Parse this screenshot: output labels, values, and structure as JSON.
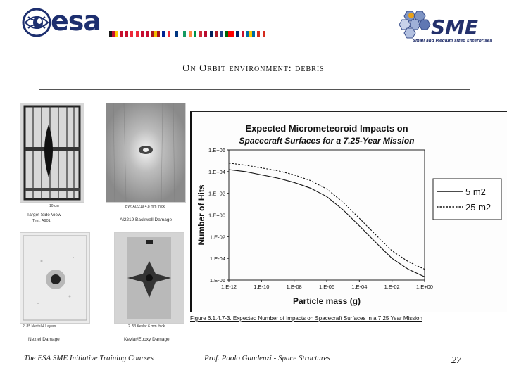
{
  "header": {
    "esa_logo_text": "esa",
    "sme_logo_text": "SME",
    "sme_tagline": "Small and Medium sized Enterprises",
    "flag_colors": [
      [
        "#1a1a1a",
        "#c8102e",
        "#ffcc00"
      ],
      [
        "#c8102e",
        "#ffffff",
        "#c8102e"
      ],
      [
        "#ed2939",
        "#ffffff",
        "#ed2939"
      ],
      [
        "#c60c30",
        "#ffffff",
        "#c60c30"
      ],
      [
        "#aa151b",
        "#f1bf00",
        "#aa151b"
      ],
      [
        "#002395",
        "#ffffff",
        "#ed2939"
      ],
      [
        "#ffffff",
        "#003580",
        "#ffffff"
      ],
      [
        "#169b62",
        "#ffffff",
        "#ff883e"
      ],
      [
        "#009246",
        "#ffffff",
        "#ce2b37"
      ],
      [
        "#ba0c2f",
        "#ffffff",
        "#00205b"
      ],
      [
        "#ae1c28",
        "#ffffff",
        "#21468b"
      ],
      [
        "#006600",
        "#ff0000",
        "#ff0000"
      ],
      [
        "#012169",
        "#ffffff",
        "#c8102e"
      ],
      [
        "#006aa7",
        "#fecc00",
        "#006aa7"
      ],
      [
        "#d52b1e",
        "#ffffff",
        "#d52b1e"
      ]
    ]
  },
  "slide": {
    "title": "On Orbit environment: debris"
  },
  "photos": {
    "p1_caption1": "Target Side View",
    "p1_caption2": "Test: A901",
    "p1_scale": "10 cm",
    "p2_caption_small": "BW: AI2219 4.8 mm thick",
    "p2_caption": "Al2219 Backwall Damage",
    "p3_caption_small": "2. 85 Nextel 4 Layers",
    "p3_caption": "Nextel Damage",
    "p4_caption_small": "2. 53 Kevlar 6 mm thick",
    "p4_caption": "Kevlar/Epoxy Damage"
  },
  "chart_data": {
    "type": "line",
    "title": "Expected Micrometeoroid Impacts on Spacecraft Surfaces for a 7.25-Year Mission",
    "title_line1": "Expected Micrometeoroid Impacts on",
    "title_line2": "Spacecraft Surfaces for a 7.25-Year Mission",
    "xlabel": "Particle mass (g)",
    "ylabel": "Number of Hits",
    "x_scale": "log",
    "y_scale": "log",
    "x_tick_labels": [
      "1.E-12",
      "1.E-10",
      "1.E-08",
      "1.E-06",
      "1.E-04",
      "1.E-02",
      "1.E+00"
    ],
    "x_tick_exponents": [
      -12,
      -10,
      -8,
      -6,
      -4,
      -2,
      0
    ],
    "y_tick_labels": [
      "1.E+06",
      "1.E+04",
      "1.E+02",
      "1.E+00",
      "1.E-02",
      "1.E-04",
      "1.E-06"
    ],
    "y_tick_exponents": [
      6,
      4,
      2,
      0,
      -2,
      -4,
      -6
    ],
    "xlim": [
      1e-12,
      1
    ],
    "ylim": [
      1e-06,
      1000000.0
    ],
    "legend_position": "right",
    "series": [
      {
        "name": "5 m2",
        "style": "solid",
        "x": [
          1e-12,
          1e-11,
          1e-10,
          1e-09,
          1e-08,
          1e-07,
          1e-06,
          1e-05,
          0.0001,
          0.001,
          0.01,
          0.1,
          1
        ],
        "y": [
          15000,
          10000,
          5000,
          2500,
          1000,
          300,
          50,
          3,
          0.1,
          0.003,
          0.0001,
          1e-05,
          2e-06
        ]
      },
      {
        "name": "25 m2",
        "style": "dashed",
        "x": [
          1e-12,
          1e-11,
          1e-10,
          1e-09,
          1e-08,
          1e-07,
          1e-06,
          1e-05,
          0.0001,
          0.001,
          0.01,
          0.1,
          1
        ],
        "y": [
          60000,
          40000,
          22000,
          12000,
          5000,
          1500,
          250,
          15,
          0.5,
          0.015,
          0.0005,
          5e-05,
          1e-05
        ]
      }
    ]
  },
  "figure_caption": "Figure 6.1.4.7-3. Expected Number of Impacts on Spacecraft Surfaces in a 7.25 Year Mission",
  "footer": {
    "course": "The ESA SME Initiative Training Courses",
    "author": "Prof. Paolo Gaudenzi - Space Structures",
    "page": "27"
  }
}
